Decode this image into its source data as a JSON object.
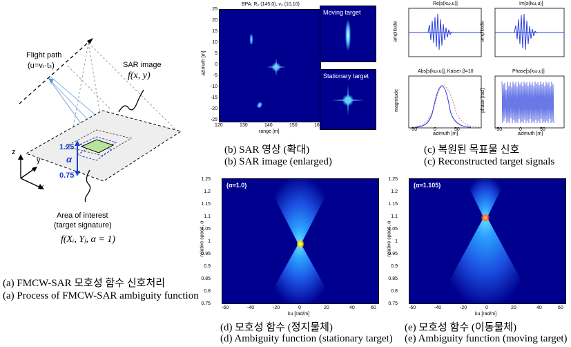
{
  "diagram": {
    "flight_path": "Flight path",
    "flight_formula": "(u=vᵣ·tₛ)",
    "sar_image": "SAR image",
    "sar_func": "f(x, y)",
    "axis_z": "z",
    "axis_y": "y",
    "axis_x": "x",
    "alpha": "α",
    "upper": "1.25",
    "lower": "0.75",
    "area_title": "Area of interest",
    "area_sub": "(target signature)",
    "area_func": "f(Xᵢ, Yⱼ, α = 1)"
  },
  "captions": {
    "a_kr": "(a) FMCW-SAR 모호성 함수 신호처리",
    "a_en": "(a) Process of FMCW-SAR ambiguity function",
    "b_kr": "(b) SAR 영상 (확대)",
    "b_en": "(b) SAR image (enlarged)",
    "c_kr": "(c) 복원된 목표물 신호",
    "c_en": "(c) Reconstructed target signals",
    "d_kr": "(d) 모호성 함수 (정지물체)",
    "d_en": "(d) Ambiguity function (stationary target)",
    "e_kr": "(e) 모호성 함수 (이동물체)",
    "e_en": "(e) Ambiguity function (moving target)"
  },
  "sar": {
    "title": "BPA: R₀ (145,0), v₀ (10,10)",
    "xlabel": "range [m]",
    "ylabel": "azimuth [m]",
    "xticks": [
      "120",
      "130",
      "140",
      "150",
      "160"
    ],
    "yticks": [
      "25",
      "20",
      "15",
      "10",
      "5",
      "0",
      "-5",
      "-10",
      "-15",
      "-20",
      "-25"
    ],
    "moving": "Moving target",
    "stationary": "Stationary target"
  },
  "signals": {
    "re_title": "Re[s(kω,u)]",
    "im_title": "Im[s(kω,u)]",
    "abs_title": "Abs[s(kω,u)], Kaiser β=10",
    "phase_title": "Phase[s(kω,u)]",
    "amp_label": "amplitude",
    "mag_label": "magnitude",
    "phase_label": "phase [rad]",
    "xlabel": "azimuth [m]",
    "xticks": [
      "-50",
      "0",
      "50",
      "100"
    ],
    "re_yticks": [
      "20",
      "10",
      "0",
      "-10",
      "-20"
    ],
    "abs_yticks": [
      "20",
      "15",
      "10",
      "5",
      "0"
    ],
    "phase_yticks": [
      "2",
      "0",
      "-2"
    ]
  },
  "ambig_d": {
    "annotation": "(α=1.0)",
    "xlabel": "ku [rad/m]",
    "ylabel": "relative speed, α",
    "yticks": [
      "1.25",
      "1.2",
      "1.15",
      "1.1",
      "1.05",
      "1",
      "0.95",
      "0.9",
      "0.85",
      "0.8",
      "0.75"
    ],
    "xticks": [
      "-60",
      "-40",
      "-20",
      "0",
      "20",
      "40",
      "60"
    ]
  },
  "ambig_e": {
    "annotation": "(α=1.105)",
    "xlabel": "ku [rad/m]",
    "ylabel": "relative speed, α",
    "yticks": [
      "1.25",
      "1.2",
      "1.15",
      "1.1",
      "1.05",
      "1",
      "0.95",
      "0.9",
      "0.85",
      "0.8",
      "0.75"
    ],
    "xticks": [
      "-60",
      "-40",
      "-20",
      "0",
      "20",
      "40",
      "60"
    ]
  },
  "colors": {
    "plot_bg": "#00008f",
    "accent": "#1a3fd1",
    "patch": "#b8e39a"
  }
}
